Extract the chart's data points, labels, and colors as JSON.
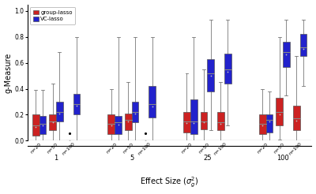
{
  "ylabel": "g-Measure",
  "ylim": [
    0.0,
    1.05
  ],
  "effect_sizes": [
    1,
    5,
    25,
    100
  ],
  "group_lasso_color": "#CC2222",
  "vc_lasso_color": "#2222CC",
  "background_color": "#FFFFFF",
  "legend_labels": [
    "group-lasso",
    "VC-lasso"
  ],
  "box_data": {
    "group_lasso": {
      "1_n20": {
        "whislo": 0.0,
        "q1": 0.04,
        "med": 0.12,
        "q3": 0.2,
        "whishi": 0.39,
        "fliers": []
      },
      "1_n50": {
        "whislo": 0.0,
        "q1": 0.08,
        "med": 0.15,
        "q3": 0.2,
        "whishi": 0.44,
        "fliers": []
      },
      "1_n100": {
        "whislo": 0.0,
        "q1": 0.0,
        "med": 0.0,
        "q3": 0.0,
        "whishi": 0.0,
        "fliers": [
          0.055
        ]
      },
      "5_n20": {
        "whislo": 0.0,
        "q1": 0.05,
        "med": 0.13,
        "q3": 0.2,
        "whishi": 0.4,
        "fliers": []
      },
      "5_n50": {
        "whislo": 0.0,
        "q1": 0.08,
        "med": 0.16,
        "q3": 0.21,
        "whishi": 0.45,
        "fliers": []
      },
      "5_n100": {
        "whislo": 0.0,
        "q1": 0.0,
        "med": 0.0,
        "q3": 0.0,
        "whishi": 0.0,
        "fliers": [
          0.055
        ]
      },
      "25_n20": {
        "whislo": 0.0,
        "q1": 0.06,
        "med": 0.15,
        "q3": 0.22,
        "whishi": 0.52,
        "fliers": []
      },
      "25_n50": {
        "whislo": 0.0,
        "q1": 0.09,
        "med": 0.15,
        "q3": 0.22,
        "whishi": 0.55,
        "fliers": []
      },
      "25_n100": {
        "whislo": 0.0,
        "q1": 0.08,
        "med": 0.14,
        "q3": 0.22,
        "whishi": 0.45,
        "fliers": []
      },
      "100_n20": {
        "whislo": 0.0,
        "q1": 0.05,
        "med": 0.13,
        "q3": 0.2,
        "whishi": 0.4,
        "fliers": []
      },
      "100_n50": {
        "whislo": 0.01,
        "q1": 0.12,
        "med": 0.22,
        "q3": 0.33,
        "whishi": 0.8,
        "fliers": []
      },
      "100_n100": {
        "whislo": 0.0,
        "q1": 0.08,
        "med": 0.17,
        "q3": 0.27,
        "whishi": 0.65,
        "fliers": []
      }
    },
    "vc_lasso": {
      "1_n20": {
        "whislo": 0.0,
        "q1": 0.05,
        "med": 0.13,
        "q3": 0.19,
        "whishi": 0.39,
        "fliers": []
      },
      "1_n50": {
        "whislo": 0.0,
        "q1": 0.15,
        "med": 0.22,
        "q3": 0.3,
        "whishi": 0.68,
        "fliers": []
      },
      "1_n100": {
        "whislo": 0.0,
        "q1": 0.2,
        "med": 0.28,
        "q3": 0.36,
        "whishi": 0.8,
        "fliers": []
      },
      "5_n20": {
        "whislo": 0.0,
        "q1": 0.05,
        "med": 0.14,
        "q3": 0.19,
        "whishi": 0.8,
        "fliers": []
      },
      "5_n50": {
        "whislo": 0.0,
        "q1": 0.14,
        "med": 0.22,
        "q3": 0.3,
        "whishi": 0.8,
        "fliers": []
      },
      "5_n100": {
        "whislo": 0.0,
        "q1": 0.18,
        "med": 0.28,
        "q3": 0.42,
        "whishi": 0.8,
        "fliers": []
      },
      "25_n20": {
        "whislo": 0.0,
        "q1": 0.05,
        "med": 0.15,
        "q3": 0.32,
        "whishi": 0.8,
        "fliers": []
      },
      "25_n50": {
        "whislo": 0.08,
        "q1": 0.38,
        "med": 0.52,
        "q3": 0.63,
        "whishi": 0.93,
        "fliers": []
      },
      "25_n100": {
        "whislo": 0.12,
        "q1": 0.44,
        "med": 0.55,
        "q3": 0.67,
        "whishi": 0.93,
        "fliers": []
      },
      "100_n20": {
        "whislo": 0.0,
        "q1": 0.06,
        "med": 0.16,
        "q3": 0.2,
        "whishi": 0.38,
        "fliers": []
      },
      "100_n50": {
        "whislo": 0.35,
        "q1": 0.57,
        "med": 0.68,
        "q3": 0.76,
        "whishi": 0.93,
        "fliers": []
      },
      "100_n100": {
        "whislo": 0.42,
        "q1": 0.65,
        "med": 0.72,
        "q3": 0.82,
        "whishi": 0.93,
        "fliers": []
      }
    }
  }
}
